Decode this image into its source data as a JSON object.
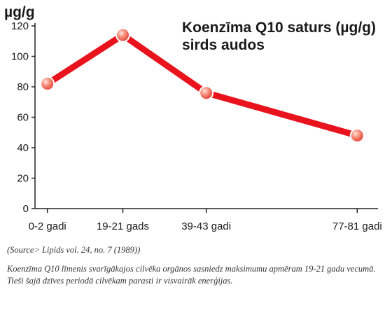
{
  "chart_data": {
    "type": "line",
    "title_lines": [
      "Koenzīma Q10 saturs (µg/g)",
      "sirds audos"
    ],
    "ylabel": "µg/g",
    "xlabel": "",
    "categories": [
      "0-2 gadi",
      "19-21 gads",
      "39-43 gadi",
      "77-81 gadi"
    ],
    "x_positions_years": [
      1,
      20,
      41,
      79
    ],
    "values": [
      82,
      114,
      76,
      48
    ],
    "ylim": [
      0,
      120
    ],
    "yticks": [
      0,
      20,
      40,
      60,
      80,
      100,
      120
    ],
    "grid": false,
    "legend": "none",
    "line_color": "#e8131c",
    "marker_color": "#f26b5b"
  },
  "notes": {
    "source": "(Source> Lipids vol. 24, no. 7 (1989))",
    "caption": "Koenzīma Q10 līmenis svarīgākajos cilvēka orgānos sasniedz maksimumu apmēram 19-21 gadu vecumā. Tieši šajā dzīves periodā cilvēkam parasti ir visvairāk enerģijas."
  }
}
